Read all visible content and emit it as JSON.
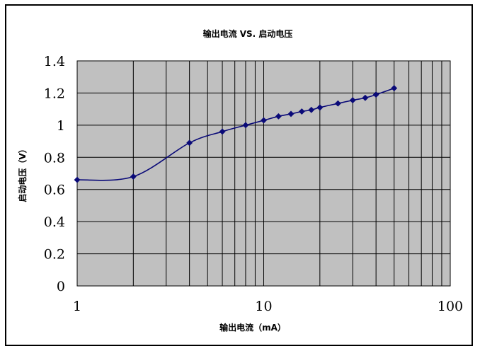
{
  "chart_data": {
    "type": "line",
    "title": "输出电流 VS. 启动电压",
    "xlabel": "输出电流（mA）",
    "ylabel": "启动电压（V）",
    "x_scale": "log",
    "xlim": [
      1,
      100
    ],
    "ylim": [
      0,
      1.4
    ],
    "x_tick_labels": [
      "1",
      "10",
      "100"
    ],
    "y_tick_labels": [
      "0",
      "0.2",
      "0.4",
      "0.6",
      "0.8",
      "1",
      "1.2",
      "1.4"
    ],
    "grid": true,
    "legend": "none",
    "series": [
      {
        "x": [
          1,
          2,
          4,
          6,
          8,
          10,
          12,
          14,
          16,
          18,
          20,
          25,
          30,
          35,
          40,
          50
        ],
        "y": [
          0.66,
          0.68,
          0.89,
          0.96,
          1.0,
          1.03,
          1.055,
          1.07,
          1.085,
          1.095,
          1.11,
          1.135,
          1.155,
          1.17,
          1.19,
          1.23
        ]
      }
    ]
  },
  "colors": {
    "plot_background": "#c0c0c0",
    "grid": "#000000",
    "series": "#0a0a78"
  }
}
